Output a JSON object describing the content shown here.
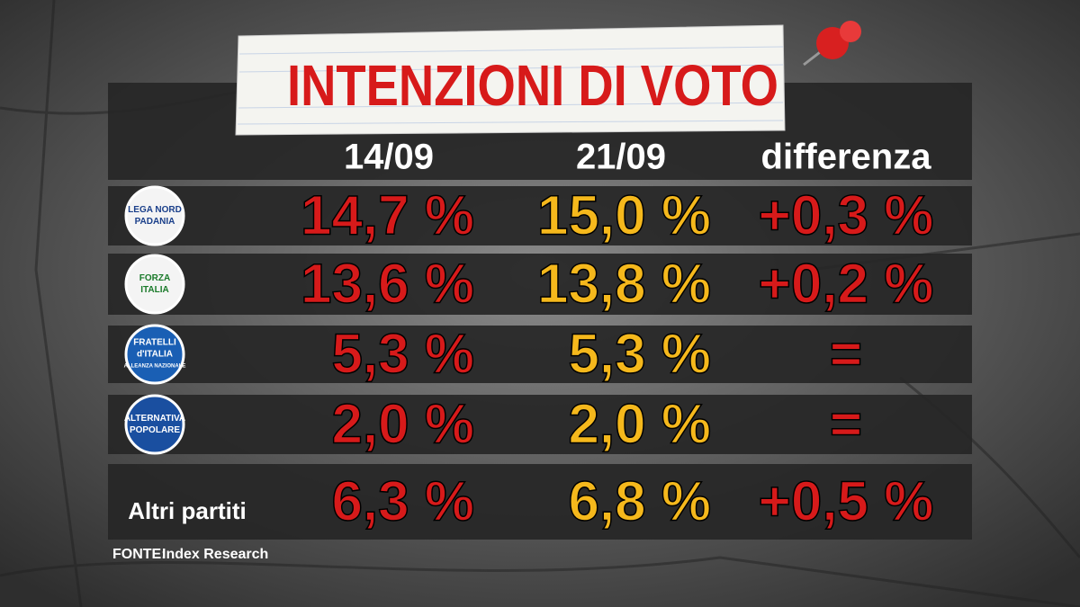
{
  "title": "INTENZIONI DI VOTO",
  "table": {
    "columns": [
      "14/09",
      "21/09",
      "differenza"
    ],
    "rows": [
      {
        "logo": [
          "LEGA NORD",
          "PADANIA"
        ],
        "values": [
          "14,7 %",
          "15,0 %",
          "+0,3 %"
        ]
      },
      {
        "logo": [
          "FORZA",
          "ITALIA"
        ],
        "values": [
          "13,6 %",
          "13,8 %",
          "+0,2 %"
        ]
      },
      {
        "logo": [
          "FRATELLI",
          "d'ITALIA",
          "ALLEANZA NAZIONALE"
        ],
        "values": [
          "5,3 %",
          "5,3 %",
          "="
        ]
      },
      {
        "logo": [
          "ALTERNATIVA",
          "POPOLARE"
        ],
        "values": [
          "2,0 %",
          "2,0 %",
          "="
        ]
      },
      {
        "label": "Altri partiti",
        "values": [
          "6,3 %",
          "6,8 %",
          "+0,5 %"
        ]
      }
    ]
  },
  "source": {
    "label": "FONTE:",
    "text": "Index Research"
  }
}
